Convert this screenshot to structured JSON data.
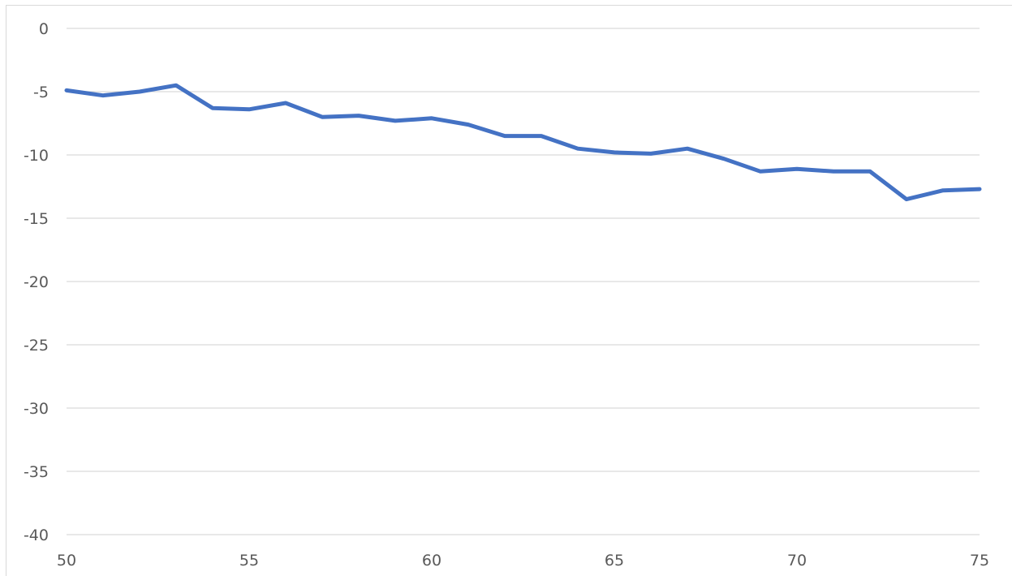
{
  "chart_data": {
    "type": "line",
    "title": "",
    "xlabel": "",
    "ylabel": "",
    "xlim": [
      50,
      75
    ],
    "ylim": [
      -40,
      0
    ],
    "x_ticks": [
      50,
      55,
      60,
      65,
      70,
      75
    ],
    "y_ticks": [
      0,
      -5,
      -10,
      -15,
      -20,
      -25,
      -30,
      -35,
      -40
    ],
    "grid": "horizontal",
    "legend": "none",
    "colors": {
      "series": "#4472c4",
      "grid": "#d9d9d9",
      "tick_text": "#595959"
    },
    "series": [
      {
        "x": [
          50,
          51,
          52,
          53,
          54,
          55,
          56,
          57,
          58,
          59,
          60,
          61,
          62,
          63,
          64,
          65,
          66,
          67,
          68,
          69,
          70,
          71,
          72,
          73,
          74,
          75
        ],
        "values": [
          -4.9,
          -5.3,
          -5.0,
          -4.5,
          -6.3,
          -6.4,
          -5.9,
          -7.0,
          -6.9,
          -7.3,
          -7.1,
          -7.6,
          -8.5,
          -8.5,
          -9.5,
          -9.8,
          -9.9,
          -9.5,
          -10.3,
          -11.3,
          -11.1,
          -11.3,
          -11.3,
          -13.5,
          -12.8,
          -12.7
        ]
      }
    ]
  }
}
